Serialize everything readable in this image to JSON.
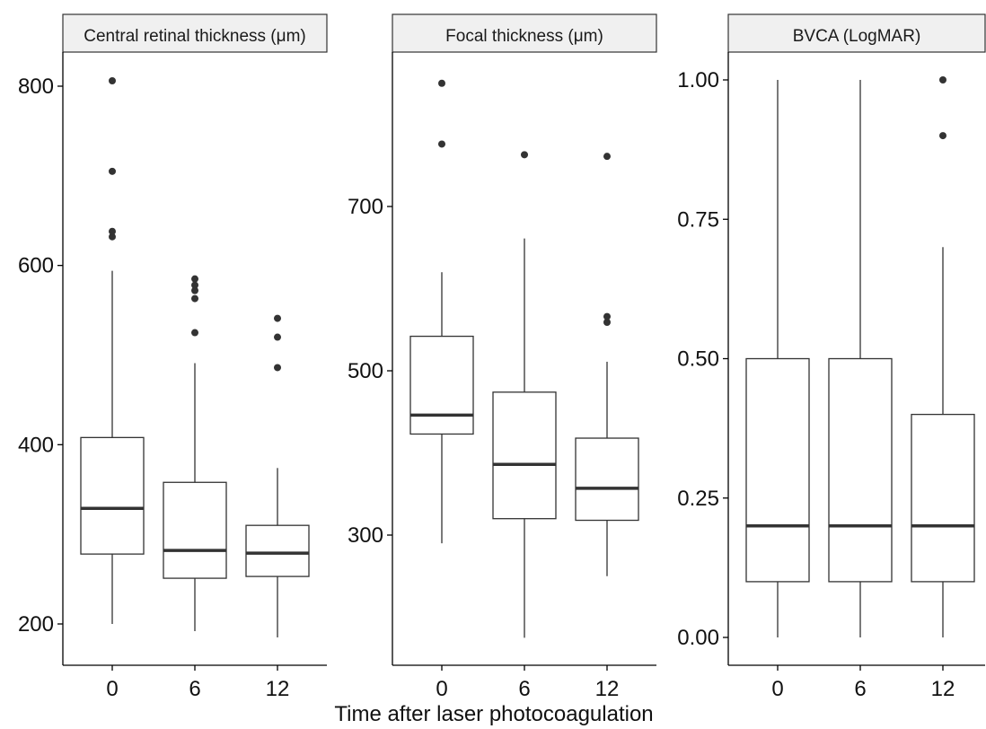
{
  "xlabel": "Time after laser photocoagulation",
  "colors": {
    "box_line": "#333333",
    "strip_fill": "#f0f0f0",
    "axis": "#000000",
    "point": "#333333"
  },
  "chart_data": [
    {
      "type": "boxplot",
      "title": "Central retinal thickness (μm)",
      "categories": [
        "0",
        "6",
        "12"
      ],
      "yticks": [
        200,
        400,
        600,
        800
      ],
      "ylim": [
        160,
        840
      ],
      "boxes": [
        {
          "category": "0",
          "whisker_low": 200,
          "q1": 278,
          "median": 329,
          "q3": 408,
          "whisker_high": 594,
          "outliers": [
            632,
            638,
            705,
            806
          ]
        },
        {
          "category": "6",
          "whisker_low": 192,
          "q1": 251,
          "median": 282,
          "q3": 358,
          "whisker_high": 491,
          "outliers": [
            525,
            563,
            572,
            578,
            585
          ]
        },
        {
          "category": "12",
          "whisker_low": 185,
          "q1": 253,
          "median": 279,
          "q3": 310,
          "whisker_high": 374,
          "outliers": [
            486,
            520,
            541
          ]
        }
      ]
    },
    {
      "type": "boxplot",
      "title": "Focal thickness (μm)",
      "categories": [
        "0",
        "6",
        "12"
      ],
      "yticks": [
        300,
        500,
        700
      ],
      "ylim": [
        160,
        880
      ],
      "boxes": [
        {
          "category": "0",
          "whisker_low": 290,
          "q1": 423,
          "median": 446,
          "q3": 542,
          "whisker_high": 620,
          "outliers": [
            776,
            850
          ]
        },
        {
          "category": "6",
          "whisker_low": 175,
          "q1": 320,
          "median": 386,
          "q3": 474,
          "whisker_high": 661,
          "outliers": [
            763
          ]
        },
        {
          "category": "12",
          "whisker_low": 250,
          "q1": 318,
          "median": 357,
          "q3": 418,
          "whisker_high": 511,
          "outliers": [
            559,
            566,
            761
          ]
        }
      ]
    },
    {
      "type": "boxplot",
      "title": "BVCA (LogMAR)",
      "categories": [
        "0",
        "6",
        "12"
      ],
      "yticks": [
        "0.00",
        "0.25",
        "0.50",
        "0.75",
        "1.00"
      ],
      "ylim": [
        -0.05,
        1.05
      ],
      "boxes": [
        {
          "category": "0",
          "whisker_low": 0.0,
          "q1": 0.1,
          "median": 0.2,
          "q3": 0.5,
          "whisker_high": 1.0,
          "outliers": []
        },
        {
          "category": "6",
          "whisker_low": 0.0,
          "q1": 0.1,
          "median": 0.2,
          "q3": 0.5,
          "whisker_high": 1.0,
          "outliers": []
        },
        {
          "category": "12",
          "whisker_low": 0.0,
          "q1": 0.1,
          "median": 0.2,
          "q3": 0.4,
          "whisker_high": 0.7,
          "outliers": [
            0.9,
            1.0
          ]
        }
      ]
    }
  ]
}
